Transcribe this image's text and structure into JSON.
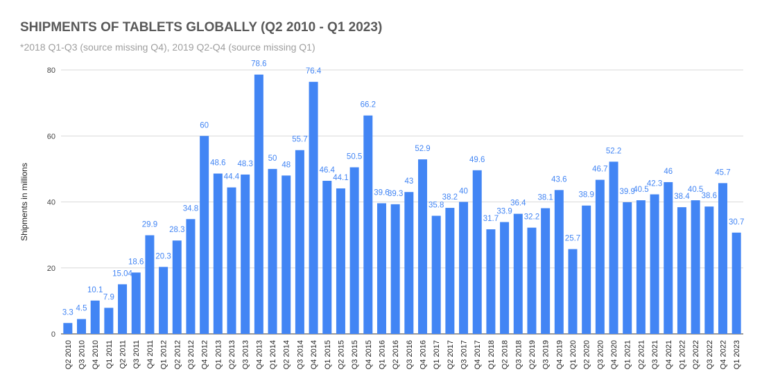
{
  "chart_data": {
    "type": "bar",
    "title": "SHIPMENTS OF TABLETS GLOBALLY (Q2 2010 - Q1 2023)",
    "subtitle": "*2018 Q1-Q3 (source missing Q4), 2019 Q2-Q4 (source missing Q1)",
    "xlabel": "",
    "ylabel": "Shipments in millions",
    "ylim": [
      0,
      80
    ],
    "yticks": [
      0,
      20,
      40,
      60,
      80
    ],
    "grid": true,
    "bar_color": "#4285f4",
    "label_color": "#4285f4",
    "categories": [
      "Q2 2010",
      "Q3 2010",
      "Q4 2010",
      "Q1 2011",
      "Q2 2011",
      "Q3 2011",
      "Q4 2011",
      "Q1 2012",
      "Q2 2012",
      "Q3 2012",
      "Q4 2012",
      "Q1 2013",
      "Q2 2013",
      "Q3 2013",
      "Q4 2013",
      "Q1 2014",
      "Q2 2014",
      "Q3 2014",
      "Q4 2014",
      "Q1 2015",
      "Q2 2015",
      "Q3 2015",
      "Q4 2015",
      "Q1 2016",
      "Q2 2016",
      "Q3 2016",
      "Q4 2016",
      "Q1 2017",
      "Q2 2017",
      "Q3 2017",
      "Q4 2017",
      "Q1 2018",
      "Q2 2018",
      "Q3 2018",
      "Q2 2019",
      "Q3 2019",
      "Q4 2019",
      "Q1 2020",
      "Q2 2020",
      "Q3 2020",
      "Q4 2020",
      "Q1 2021",
      "Q2 2021",
      "Q3 2021",
      "Q4 2021",
      "Q1 2022",
      "Q2 2022",
      "Q3 2022",
      "Q4 2022",
      "Q1 2023"
    ],
    "values": [
      3.3,
      4.5,
      10.1,
      7.9,
      15.04,
      18.6,
      29.9,
      20.3,
      28.3,
      34.8,
      60,
      48.6,
      44.4,
      48.3,
      78.6,
      50,
      48,
      55.7,
      76.4,
      46.4,
      44.1,
      50.5,
      66.2,
      39.6,
      39.3,
      43,
      52.9,
      35.8,
      38.2,
      40,
      49.6,
      31.7,
      33.9,
      36.4,
      32.2,
      38.1,
      43.6,
      25.7,
      38.9,
      46.7,
      52.2,
      39.9,
      40.5,
      42.3,
      46,
      38.4,
      40.5,
      38.6,
      45.7,
      30.7
    ]
  }
}
